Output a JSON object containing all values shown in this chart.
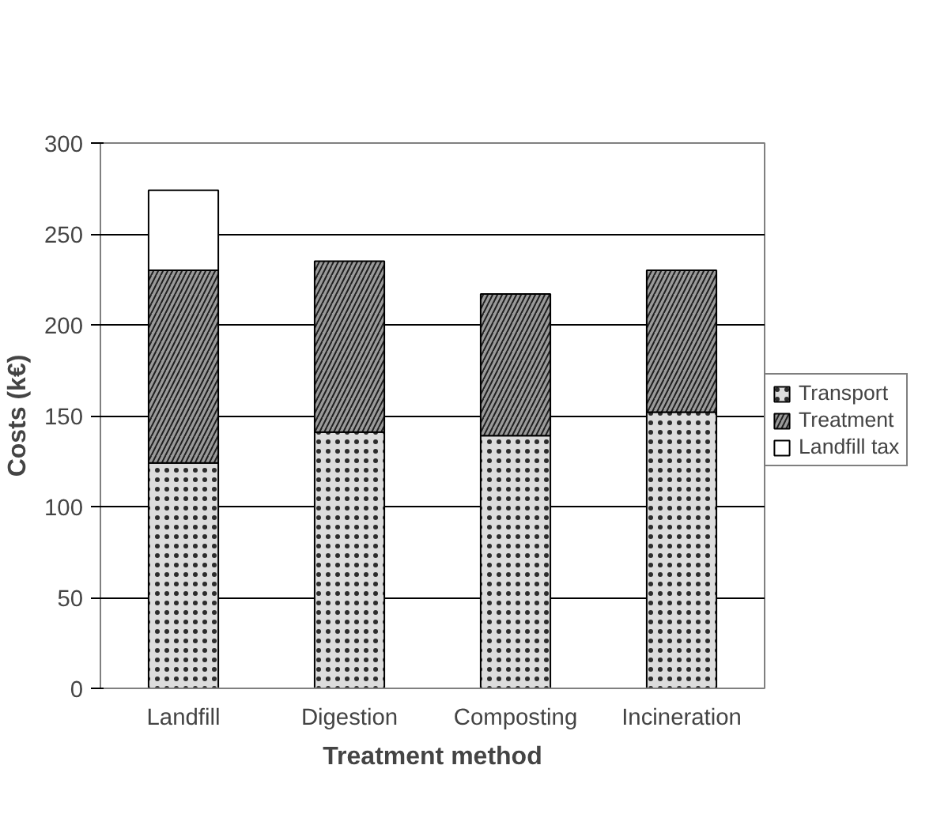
{
  "chart_data": {
    "type": "bar",
    "stacked": true,
    "xlabel": "Treatment method",
    "ylabel": "Costs (k€)",
    "categories": [
      "Landfill",
      "Digestion",
      "Composting",
      "Incineration"
    ],
    "series": [
      {
        "name": "Transport",
        "color": "#dcdcdc",
        "values": [
          124,
          141,
          139,
          152
        ]
      },
      {
        "name": "Treatment",
        "color": "#9a9a9a",
        "values": [
          106,
          94,
          78,
          78
        ]
      },
      {
        "name": "Landfill tax",
        "color": "#ffffff",
        "values": [
          44,
          0,
          0,
          0
        ]
      }
    ],
    "ylim": [
      0,
      300
    ],
    "yticks": [
      0,
      50,
      100,
      150,
      200,
      250,
      300
    ],
    "grid": "y",
    "legend": "right"
  }
}
